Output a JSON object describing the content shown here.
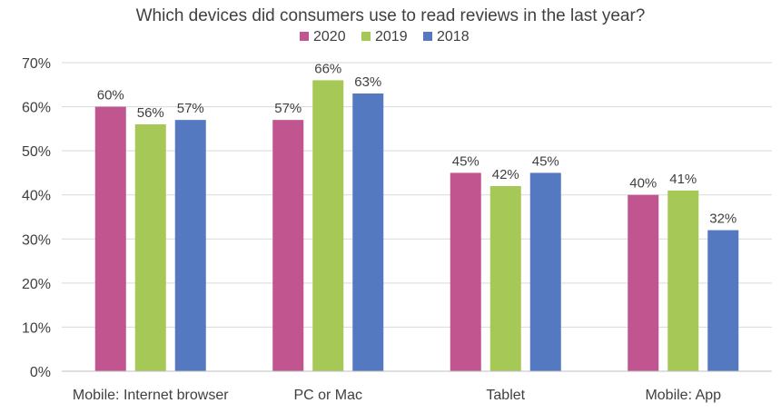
{
  "chart_data": {
    "type": "bar",
    "title": "Which devices did consumers use to read reviews in the last year?",
    "xlabel": "",
    "ylabel": "",
    "categories": [
      "Mobile: Internet browser",
      "PC or Mac",
      "Tablet",
      "Mobile: App"
    ],
    "series": [
      {
        "name": "2020",
        "color": "#c0558f",
        "values": [
          60,
          57,
          45,
          40
        ]
      },
      {
        "name": "2019",
        "color": "#a6c857",
        "values": [
          56,
          66,
          42,
          41
        ]
      },
      {
        "name": "2018",
        "color": "#5479c0",
        "values": [
          57,
          63,
          45,
          32
        ]
      }
    ],
    "ylim": [
      0,
      70
    ],
    "yticks": [
      0,
      10,
      20,
      30,
      40,
      50,
      60,
      70
    ],
    "tick_suffix": "%",
    "data_label_suffix": "%",
    "grid": true,
    "legend_position": "top-center"
  }
}
